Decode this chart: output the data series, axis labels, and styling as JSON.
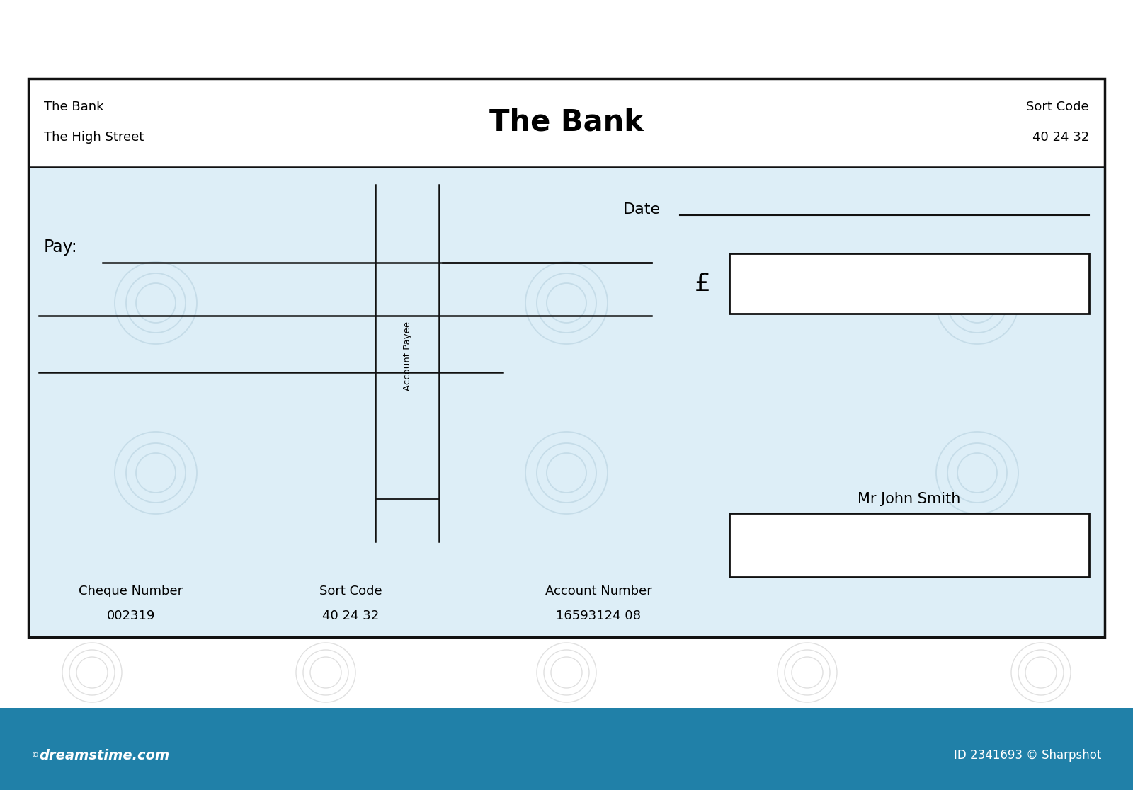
{
  "bg_color": "#ffffff",
  "cheque_bg": "#ddeef7",
  "border_color": "#111111",
  "bank_name_center": "The Bank",
  "bank_name_left": "The Bank",
  "bank_street_left": "The High Street",
  "sort_code_label_right": "Sort Code",
  "sort_code_value_right": "40 24 32",
  "date_label": "Date",
  "pay_label": "Pay:",
  "account_payee_text": "Account Payee",
  "pound_symbol": "£",
  "mr_john_smith": "Mr John Smith",
  "cheque_number_label": "Cheque Number",
  "cheque_number_value": "002319",
  "sort_code_label_bottom": "Sort Code",
  "sort_code_value_bottom": "40 24 32",
  "account_number_label": "Account Number",
  "account_number_value": "16593124 08",
  "watermark_spiral_color": "#c5dce8",
  "bottom_bar_color": "#2080a8",
  "dreamtime_text": "dreamstime.com",
  "dreamtime_id": "ID 2341693 © Sharpshot",
  "line_color": "#111111"
}
